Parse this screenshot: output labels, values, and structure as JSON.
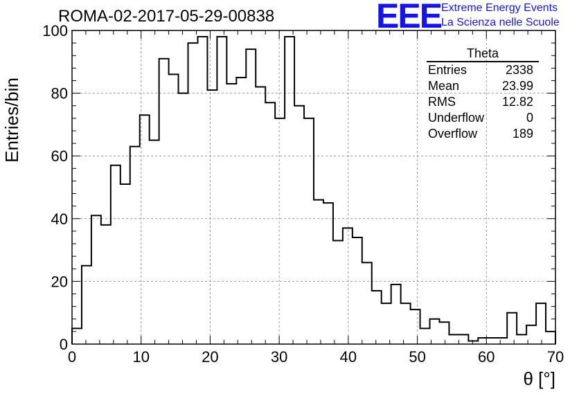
{
  "header": {
    "title": "ROMA-02-2017-05-29-00838",
    "logo_text": "EEE",
    "subtitle_line1": "Extreme Energy Events",
    "subtitle_line2": "La Scienza nelle Scuole",
    "accent_color": "#1414e6"
  },
  "stats": {
    "name": "Theta",
    "rows": [
      {
        "label": "Entries",
        "value": "2338"
      },
      {
        "label": "Mean",
        "value": "23.99"
      },
      {
        "label": "RMS",
        "value": "12.82"
      },
      {
        "label": "Underflow",
        "value": "0"
      },
      {
        "label": "Overflow",
        "value": "189"
      }
    ]
  },
  "chart_data": {
    "type": "histogram",
    "xlabel": "θ [°]",
    "ylabel": "Entries/bin",
    "xlim": [
      0,
      70
    ],
    "ylim": [
      0,
      100
    ],
    "grid": true,
    "bin_width": 1.4,
    "bin_edges_start": 0,
    "values": [
      5,
      25,
      41,
      38,
      57,
      51,
      63,
      73,
      65,
      91,
      86,
      80,
      96,
      98,
      81,
      98,
      83,
      85,
      94,
      82,
      77,
      72,
      98,
      76,
      72,
      46,
      45,
      33,
      37,
      34,
      26,
      17,
      13,
      19,
      13,
      11,
      5,
      8,
      7,
      3,
      3,
      1,
      2,
      2,
      2,
      10,
      3,
      6,
      13,
      4
    ],
    "xticks": [
      0,
      10,
      20,
      30,
      40,
      50,
      60,
      70
    ],
    "yticks": [
      0,
      20,
      40,
      60,
      80,
      100
    ]
  }
}
